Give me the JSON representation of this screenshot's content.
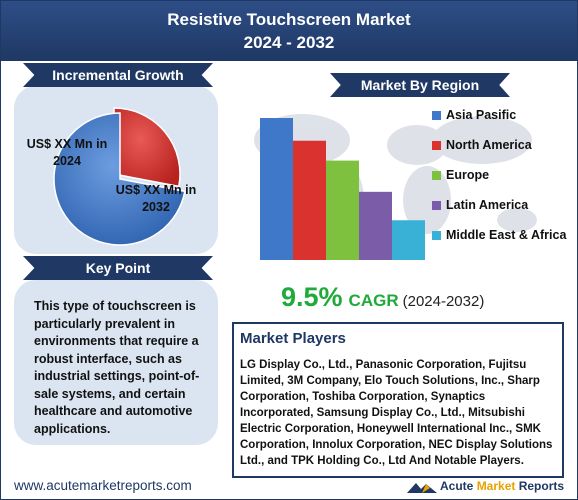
{
  "header": {
    "title_line1": "Resistive Touchscreen Market",
    "title_line2": "2024 - 2032"
  },
  "incremental": {
    "title": "Incremental Growth",
    "label_2024": "US$ XX Mn in 2024",
    "label_2032": "US$ XX Mn in 2032",
    "colors": {
      "slice_2024": "#d9322f",
      "slice_2032": "#3f78c8"
    }
  },
  "keypoint": {
    "title": "Key Point",
    "text": "This type of touchscreen is particularly prevalent in environments that require a robust interface, such as industrial settings, point-of-sale systems, and certain healthcare and automotive applications."
  },
  "chart_data": [
    {
      "type": "pie",
      "title": "Incremental Growth",
      "slices": [
        {
          "label": "US$ XX Mn in 2024",
          "value": 28
        },
        {
          "label": "US$ XX Mn in 2032",
          "value": 72
        }
      ]
    },
    {
      "type": "bar",
      "title": "Market By Region",
      "categories": [
        "Asia Pasific",
        "North America",
        "Europe",
        "Latin America",
        "Middle East & Africa"
      ],
      "values": [
        100,
        84,
        70,
        48,
        28
      ],
      "colors": [
        "#3f78c8",
        "#d9322f",
        "#7ec13e",
        "#7b5ca8",
        "#39b0d6"
      ],
      "legend_position": "right",
      "grid": false
    }
  ],
  "region": {
    "title": "Market By Region"
  },
  "cagr": {
    "value": "9.5%",
    "label": "CAGR",
    "period": "(2024-2032)"
  },
  "players": {
    "title": "Market Players",
    "text": "LG Display Co., Ltd., Panasonic Corporation, Fujitsu Limited, 3M Company, Elo Touch Solutions, Inc., Sharp Corporation, Toshiba Corporation, Synaptics Incorporated, Samsung Display Co., Ltd., Mitsubishi Electric Corporation, Honeywell International Inc., SMK Corporation, Innolux Corporation, NEC Display Solutions Ltd., and TPK Holding Co., Ltd And Notable Players."
  },
  "footer": {
    "url": "www.acutemarketreports.com",
    "logo_part1": "Acute",
    "logo_part2": "Market",
    "logo_part3": "Reports"
  }
}
